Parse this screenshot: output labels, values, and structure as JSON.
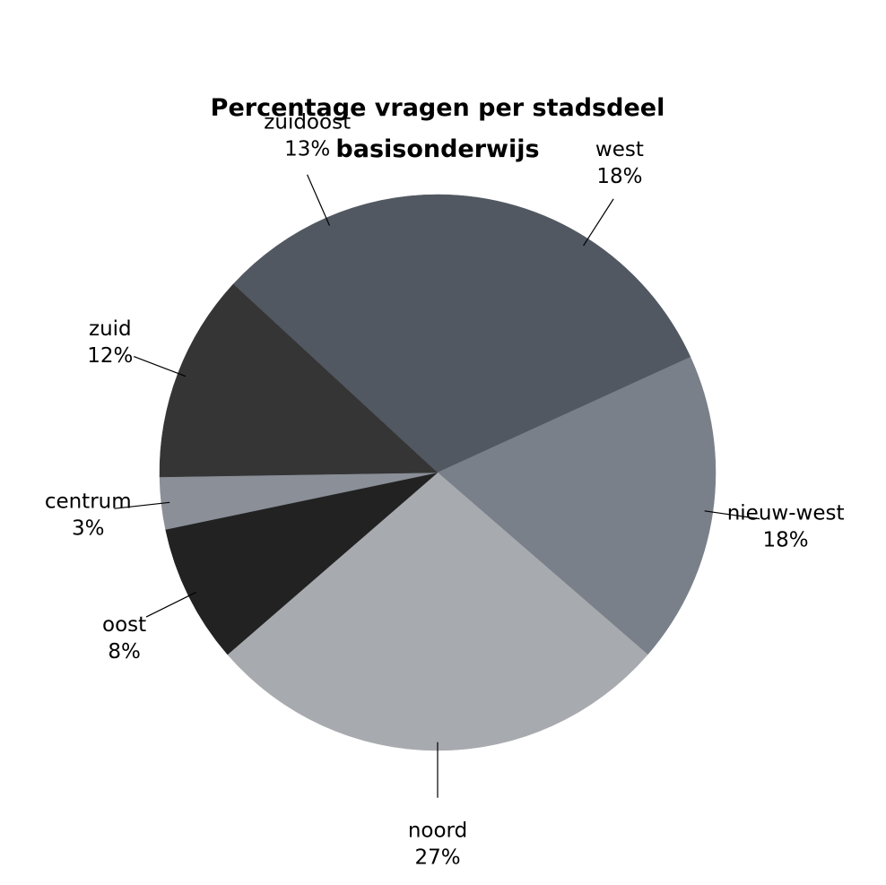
{
  "chart_data": {
    "type": "pie",
    "title": "Percentage vragen per stadsdeel basisonderwijs",
    "categories": [
      "west",
      "nieuw-west",
      "noord",
      "oost",
      "centrum",
      "zuid",
      "zuidoost"
    ],
    "values": [
      18,
      18,
      27,
      8,
      3,
      12,
      13
    ],
    "value_labels": [
      "18%",
      "18%",
      "27%",
      "8%",
      "3%",
      "12%",
      "13%"
    ],
    "colors": [
      "#525861",
      "#7a808a",
      "#a7aaae",
      "#222222",
      "#8a8f98",
      "#353535",
      "#525861"
    ]
  }
}
